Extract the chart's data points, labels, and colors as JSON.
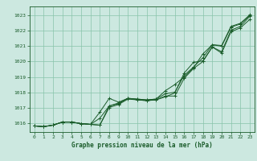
{
  "title": "Graphe pression niveau de la mer (hPa)",
  "bg_color": "#cce8e0",
  "grid_color": "#88c4aa",
  "line_color": "#1a5c2a",
  "xlim": [
    -0.5,
    23.5
  ],
  "ylim": [
    1015.4,
    1023.6
  ],
  "yticks": [
    1016,
    1017,
    1018,
    1019,
    1020,
    1021,
    1022,
    1023
  ],
  "xticks": [
    0,
    1,
    2,
    3,
    4,
    5,
    6,
    7,
    8,
    9,
    10,
    11,
    12,
    13,
    14,
    15,
    16,
    17,
    18,
    19,
    20,
    21,
    22,
    23
  ],
  "series": {
    "line1": [
      1015.8,
      1015.75,
      1015.85,
      1016.05,
      1016.05,
      1015.95,
      1015.9,
      1015.85,
      1017.0,
      1017.2,
      1017.55,
      1017.5,
      1017.45,
      1017.5,
      1017.75,
      1017.75,
      1018.9,
      1019.55,
      1020.0,
      1020.95,
      1020.55,
      1021.95,
      1022.2,
      1022.75
    ],
    "line2": [
      1015.8,
      1015.75,
      1015.85,
      1016.05,
      1016.05,
      1015.95,
      1015.9,
      1016.3,
      1017.1,
      1017.3,
      1017.6,
      1017.55,
      1017.5,
      1017.55,
      1017.9,
      1018.0,
      1019.1,
      1019.65,
      1020.25,
      1021.1,
      1021.0,
      1022.25,
      1022.45,
      1023.0
    ],
    "line3": [
      1015.8,
      1015.75,
      1015.85,
      1016.05,
      1016.05,
      1015.95,
      1015.9,
      1016.7,
      1017.6,
      1017.35,
      1017.6,
      1017.5,
      1017.45,
      1017.5,
      1017.7,
      1017.95,
      1019.25,
      1019.95,
      1020.05,
      1020.95,
      1020.65,
      1022.05,
      1022.3,
      1022.95
    ],
    "line4": [
      1015.8,
      1015.75,
      1015.85,
      1016.05,
      1016.05,
      1015.95,
      1015.9,
      1015.85,
      1017.1,
      1017.25,
      1017.6,
      1017.55,
      1017.5,
      1017.55,
      1018.1,
      1018.5,
      1019.0,
      1019.6,
      1020.5,
      1021.1,
      1021.05,
      1022.3,
      1022.5,
      1023.05
    ]
  }
}
